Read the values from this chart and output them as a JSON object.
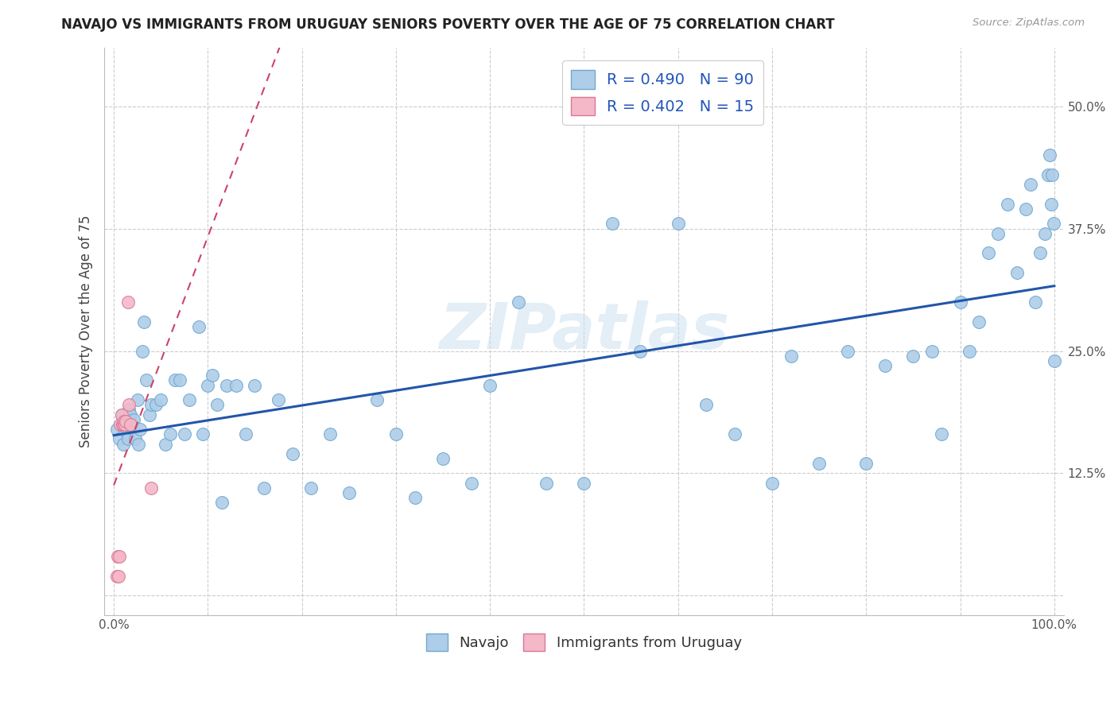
{
  "title": "NAVAJO VS IMMIGRANTS FROM URUGUAY SENIORS POVERTY OVER THE AGE OF 75 CORRELATION CHART",
  "source": "Source: ZipAtlas.com",
  "ylabel": "Seniors Poverty Over the Age of 75",
  "xlim": [
    -0.01,
    1.01
  ],
  "ylim": [
    -0.02,
    0.56
  ],
  "x_ticks": [
    0.0,
    0.1,
    0.2,
    0.3,
    0.4,
    0.5,
    0.6,
    0.7,
    0.8,
    0.9,
    1.0
  ],
  "x_tick_labels": [
    "0.0%",
    "",
    "",
    "",
    "",
    "",
    "",
    "",
    "",
    "",
    "100.0%"
  ],
  "y_ticks": [
    0.0,
    0.125,
    0.25,
    0.375,
    0.5
  ],
  "y_tick_labels": [
    "",
    "12.5%",
    "25.0%",
    "37.5%",
    "50.0%"
  ],
  "navajo_R": "0.490",
  "navajo_N": "90",
  "uruguay_R": "0.402",
  "uruguay_N": "15",
  "watermark": "ZIPatlas",
  "navajo_color": "#aecde8",
  "navajo_edge_color": "#6fa8d0",
  "uruguay_color": "#f4b8c8",
  "uruguay_edge_color": "#d87898",
  "trend_navajo_color": "#2255aa",
  "trend_uruguay_color": "#cc4466",
  "background_color": "#ffffff",
  "grid_color": "#cccccc",
  "navajo_x": [
    0.003,
    0.006,
    0.008,
    0.009,
    0.01,
    0.01,
    0.011,
    0.012,
    0.013,
    0.014,
    0.015,
    0.016,
    0.017,
    0.018,
    0.02,
    0.021,
    0.023,
    0.025,
    0.026,
    0.028,
    0.03,
    0.032,
    0.035,
    0.038,
    0.04,
    0.045,
    0.05,
    0.055,
    0.06,
    0.065,
    0.07,
    0.075,
    0.08,
    0.09,
    0.095,
    0.1,
    0.105,
    0.11,
    0.115,
    0.12,
    0.13,
    0.14,
    0.15,
    0.16,
    0.175,
    0.19,
    0.21,
    0.23,
    0.25,
    0.28,
    0.3,
    0.32,
    0.35,
    0.38,
    0.4,
    0.43,
    0.46,
    0.5,
    0.53,
    0.56,
    0.6,
    0.63,
    0.66,
    0.7,
    0.72,
    0.75,
    0.78,
    0.8,
    0.82,
    0.85,
    0.87,
    0.88,
    0.9,
    0.91,
    0.92,
    0.93,
    0.94,
    0.95,
    0.96,
    0.97,
    0.975,
    0.98,
    0.985,
    0.99,
    0.993,
    0.995,
    0.997,
    0.998,
    0.999,
    1.0
  ],
  "navajo_y": [
    0.17,
    0.16,
    0.185,
    0.175,
    0.155,
    0.175,
    0.17,
    0.18,
    0.175,
    0.165,
    0.16,
    0.19,
    0.18,
    0.185,
    0.17,
    0.18,
    0.16,
    0.2,
    0.155,
    0.17,
    0.25,
    0.28,
    0.22,
    0.185,
    0.195,
    0.195,
    0.2,
    0.155,
    0.165,
    0.22,
    0.22,
    0.165,
    0.2,
    0.275,
    0.165,
    0.215,
    0.225,
    0.195,
    0.095,
    0.215,
    0.215,
    0.165,
    0.215,
    0.11,
    0.2,
    0.145,
    0.11,
    0.165,
    0.105,
    0.2,
    0.165,
    0.1,
    0.14,
    0.115,
    0.215,
    0.3,
    0.115,
    0.115,
    0.38,
    0.25,
    0.38,
    0.195,
    0.165,
    0.115,
    0.245,
    0.135,
    0.25,
    0.135,
    0.235,
    0.245,
    0.25,
    0.165,
    0.3,
    0.25,
    0.28,
    0.35,
    0.37,
    0.4,
    0.33,
    0.395,
    0.42,
    0.3,
    0.35,
    0.37,
    0.43,
    0.45,
    0.4,
    0.43,
    0.38,
    0.24
  ],
  "uruguay_x": [
    0.003,
    0.004,
    0.005,
    0.006,
    0.007,
    0.008,
    0.009,
    0.01,
    0.011,
    0.012,
    0.013,
    0.015,
    0.016,
    0.018,
    0.04
  ],
  "uruguay_y": [
    0.02,
    0.04,
    0.02,
    0.04,
    0.175,
    0.185,
    0.175,
    0.175,
    0.178,
    0.175,
    0.178,
    0.3,
    0.195,
    0.175,
    0.11
  ]
}
